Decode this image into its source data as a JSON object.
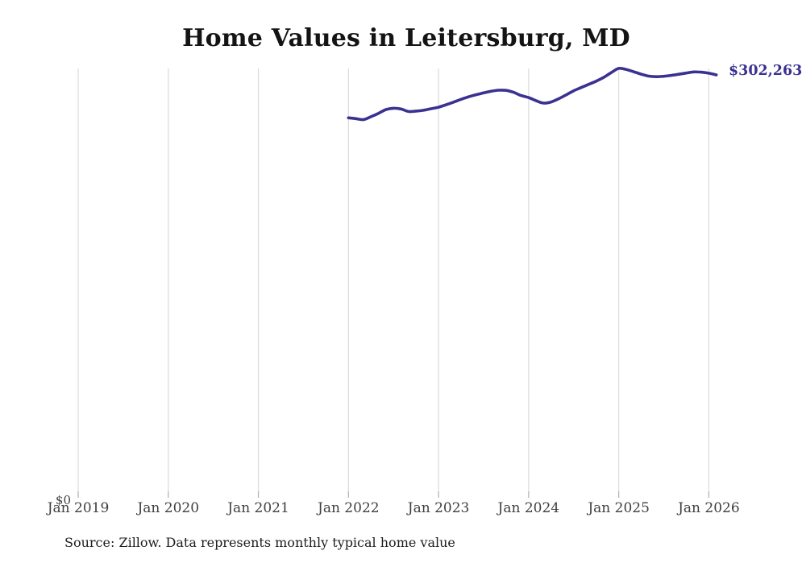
{
  "title": "Home Values in Leitersburg, MD",
  "y_zero_label": "$0",
  "end_label": "$302,263",
  "source_note": "Source: Zillow. Data represents monthly typical home value",
  "colors": {
    "line": "#3a3191",
    "end_label_text": "#3a3191",
    "gridline": "#dbdbdb",
    "tick": "#b0b0b0",
    "axis_label_text": "#3f3f3f",
    "title_text": "#141414",
    "source_text": "#1d1d1d",
    "background": "#ffffff"
  },
  "chart_data": {
    "type": "line",
    "title": "Home Values in Leitersburg, MD",
    "xlabel": "",
    "ylabel": "",
    "grid": "vertical-only",
    "legend": "none",
    "x_tick_labels": [
      "Jan 2019",
      "Jan 2020",
      "Jan 2021",
      "Jan 2022",
      "Jan 2023",
      "Jan 2024",
      "Jan 2025",
      "Jan 2026"
    ],
    "y_tick_labels": [
      "$0"
    ],
    "xlim": [
      "Jan 2019",
      "Mar 2026"
    ],
    "ylim": [
      0,
      310000
    ],
    "annotations": [
      {
        "text": "$302,263",
        "attached_to": "last-point"
      }
    ],
    "series": [
      {
        "name": "Monthly typical home value",
        "start_month": "2022-01",
        "end_value": 302263,
        "end_value_label": "$302,263",
        "months": [
          "2022-01",
          "2022-02",
          "2022-03",
          "2022-04",
          "2022-05",
          "2022-06",
          "2022-07",
          "2022-08",
          "2022-09",
          "2022-10",
          "2022-11",
          "2022-12",
          "2023-01",
          "2023-02",
          "2023-03",
          "2023-04",
          "2023-05",
          "2023-06",
          "2023-07",
          "2023-08",
          "2023-09",
          "2023-10",
          "2023-11",
          "2023-12",
          "2024-01",
          "2024-02",
          "2024-03",
          "2024-04",
          "2024-05",
          "2024-06",
          "2024-07",
          "2024-08",
          "2024-09",
          "2024-10",
          "2024-11",
          "2024-12",
          "2025-01",
          "2025-02",
          "2025-03",
          "2025-04",
          "2025-05",
          "2025-06",
          "2025-07",
          "2025-08",
          "2025-09",
          "2025-10",
          "2025-11",
          "2025-12",
          "2026-01",
          "2026-02"
        ],
        "values": [
          271600,
          271000,
          270300,
          272400,
          274800,
          277500,
          278400,
          277900,
          276100,
          276400,
          277000,
          278100,
          279200,
          280900,
          282800,
          284800,
          286600,
          288100,
          289400,
          290600,
          291300,
          291200,
          289800,
          287500,
          286100,
          283800,
          282100,
          282900,
          285200,
          288000,
          290900,
          293200,
          295500,
          297800,
          300500,
          303900,
          306900,
          306200,
          304500,
          302800,
          301400,
          301000,
          301300,
          301900,
          302700,
          303600,
          304400,
          304200,
          303500,
          302263
        ]
      }
    ]
  }
}
